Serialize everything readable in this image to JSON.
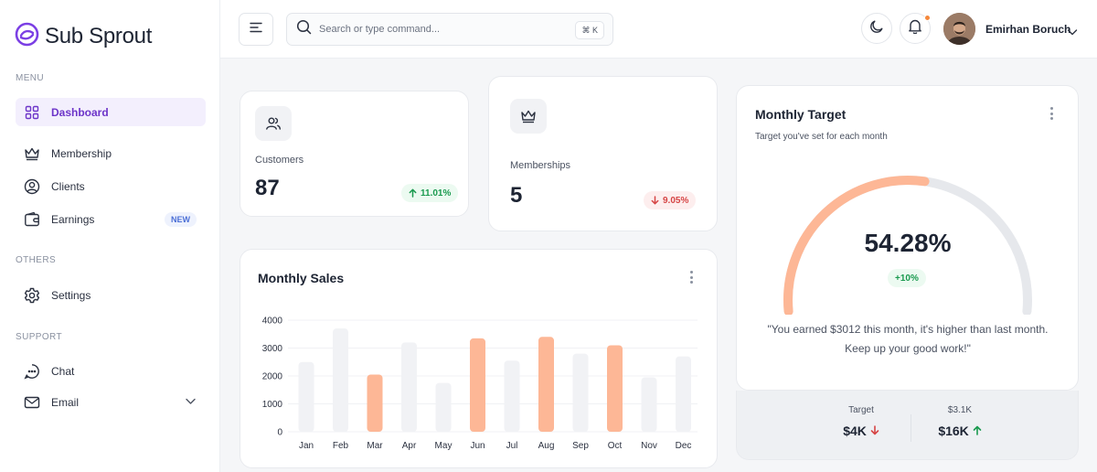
{
  "brand": {
    "name": "Sub Sprout",
    "accent": "#7b3fe4"
  },
  "sidebar": {
    "menu_label": "MENU",
    "others_label": "OTHERS",
    "support_label": "SUPPORT",
    "items": [
      {
        "label": "Dashboard",
        "icon": "grid-icon",
        "active": true
      },
      {
        "label": "Membership",
        "icon": "crown-icon"
      },
      {
        "label": "Clients",
        "icon": "user-circle-icon"
      },
      {
        "label": "Earnings",
        "icon": "wallet-icon",
        "badge": "NEW"
      },
      {
        "label": "Settings",
        "icon": "gear-icon"
      },
      {
        "label": "Chat",
        "icon": "chat-icon"
      },
      {
        "label": "Email",
        "icon": "mail-icon"
      }
    ]
  },
  "header": {
    "search_placeholder": "Search or type command...",
    "shortcut": "⌘ K",
    "user_name": "Emirhan Boruch"
  },
  "stats": {
    "customers": {
      "label": "Customers",
      "value": "87",
      "change": "11.01%",
      "direction": "up"
    },
    "memberships": {
      "label": "Memberships",
      "value": "5",
      "change": "9.05%",
      "direction": "down"
    }
  },
  "monthly_target": {
    "title": "Monthly Target",
    "subtitle": "Target you've set for each month",
    "percent_label": "54.28%",
    "progress": 0.5428,
    "delta": "+10%",
    "message": "\"You earned $3012 this month, it's higher than last month. Keep up your good work!\"",
    "footer": [
      {
        "label": "Target",
        "value": "$4K",
        "direction": "down"
      },
      {
        "label": "$3.1K",
        "value": "$16K",
        "direction": "up"
      }
    ]
  },
  "monthly_sales": {
    "title": "Monthly Sales"
  },
  "chart_data": {
    "type": "bar",
    "title": "Monthly Sales",
    "categories": [
      "Jan",
      "Feb",
      "Mar",
      "Apr",
      "May",
      "Jun",
      "Jul",
      "Aug",
      "Sep",
      "Oct",
      "Nov",
      "Dec"
    ],
    "values": [
      2500,
      3700,
      2050,
      3200,
      1750,
      3350,
      2550,
      3400,
      2800,
      3100,
      1950,
      2700
    ],
    "highlighted": [
      "Mar",
      "Jun",
      "Aug",
      "Oct"
    ],
    "ylim": [
      0,
      4000
    ],
    "yticks": [
      0,
      1000,
      2000,
      3000,
      4000
    ],
    "grid": true,
    "colors": {
      "highlight": "#fdb796",
      "base": "#f1f2f5"
    }
  }
}
